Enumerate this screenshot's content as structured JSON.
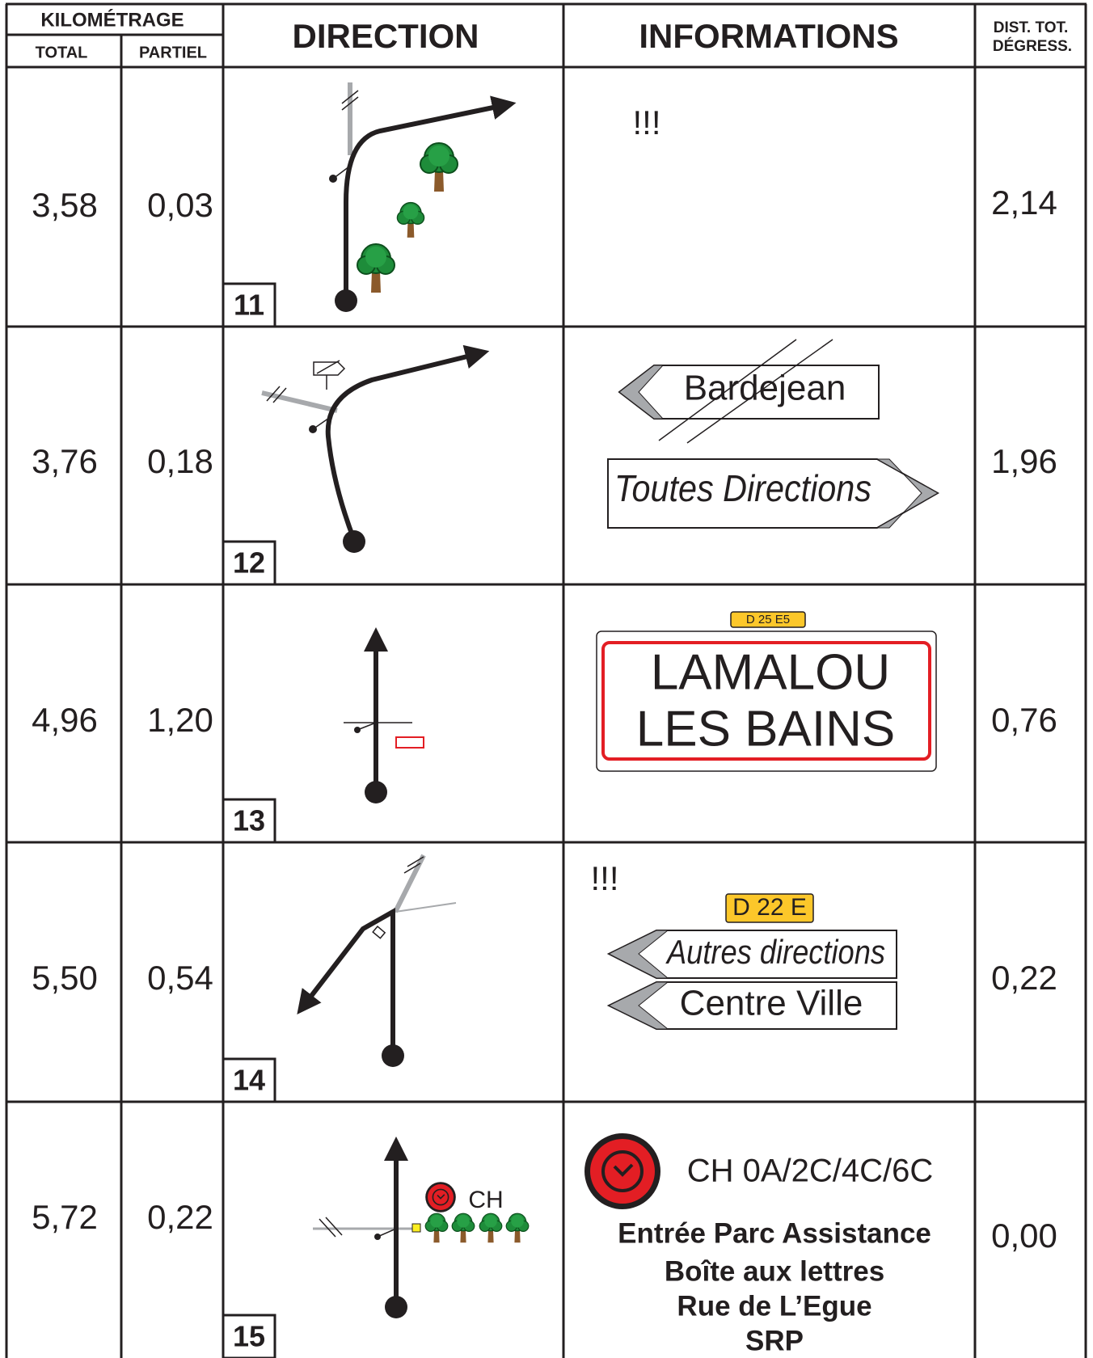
{
  "header": {
    "kilometrage": "KILOMÉTRAGE",
    "total": "TOTAL",
    "partiel": "PARTIEL",
    "direction": "DIRECTION",
    "informations": "INFORMATIONS",
    "dist_line1": "DIST. TOT.",
    "dist_line2": "DÉGRESS."
  },
  "rows": [
    {
      "total": "3,58",
      "partiel": "0,03",
      "number": "11",
      "dist": "2,14",
      "info": {
        "alert": "!!!"
      }
    },
    {
      "total": "3,76",
      "partiel": "0,18",
      "number": "12",
      "dist": "1,96",
      "info": {
        "signs": [
          "Bardejean",
          "Toutes Directions"
        ]
      }
    },
    {
      "total": "4,96",
      "partiel": "1,20",
      "number": "13",
      "dist": "0,76",
      "info": {
        "road": "D 25 E5",
        "town": [
          "LAMALOU",
          "LES BAINS"
        ]
      }
    },
    {
      "total": "5,50",
      "partiel": "0,54",
      "number": "14",
      "dist": "0,22",
      "info": {
        "alert": "!!!",
        "road": "D 22 E",
        "signs": [
          "Autres directions",
          "Centre Ville"
        ]
      }
    },
    {
      "total": "5,72",
      "partiel": "0,22",
      "number": "15",
      "dist": "0,00",
      "info": {
        "diagram_label": "CH",
        "control": "CH 0A/2C/4C/6C",
        "lines": [
          "Entrée Parc Assistance",
          "Boîte aux lettres",
          "Rue de L’Egue",
          "SRP"
        ]
      }
    }
  ]
}
